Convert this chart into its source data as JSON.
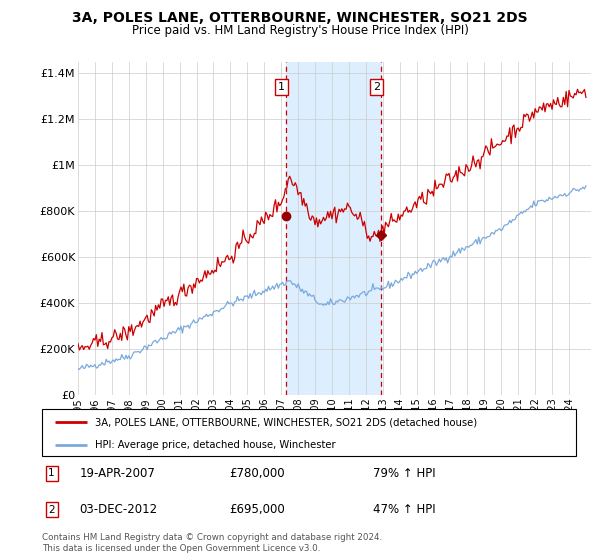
{
  "title": "3A, POLES LANE, OTTERBOURNE, WINCHESTER, SO21 2DS",
  "subtitle": "Price paid vs. HM Land Registry's House Price Index (HPI)",
  "hpi_label": "HPI: Average price, detached house, Winchester",
  "price_label": "3A, POLES LANE, OTTERBOURNE, WINCHESTER, SO21 2DS (detached house)",
  "footnote": "Contains HM Land Registry data © Crown copyright and database right 2024.\nThis data is licensed under the Open Government Licence v3.0.",
  "sale1_date": "19-APR-2007",
  "sale1_price": 780000,
  "sale1_pct": "79% ↑ HPI",
  "sale2_date": "03-DEC-2012",
  "sale2_price": 695000,
  "sale2_pct": "47% ↑ HPI",
  "ylim": [
    0,
    1450000
  ],
  "yticks": [
    0,
    200000,
    400000,
    600000,
    800000,
    1000000,
    1200000,
    1400000
  ],
  "ytick_labels": [
    "£0",
    "£200K",
    "£400K",
    "£600K",
    "£800K",
    "£1M",
    "£1.2M",
    "£1.4M"
  ],
  "price_color": "#cc0000",
  "hpi_color": "#7aaadd",
  "shade_color": "#ddeeff",
  "grid_color": "#cccccc",
  "sale1_year": 2007.3,
  "sale2_year": 2012.92,
  "xstart": 1995,
  "xend": 2025
}
